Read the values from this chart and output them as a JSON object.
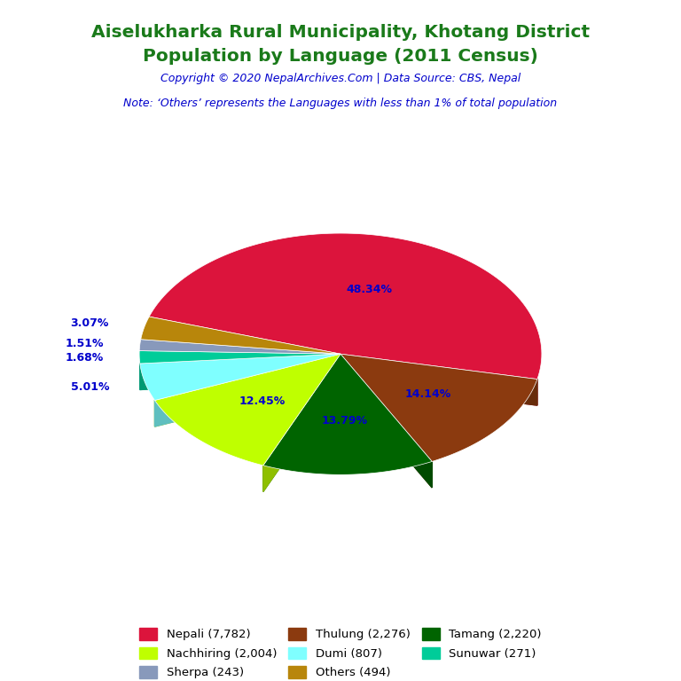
{
  "title_line1": "Aiselukharka Rural Municipality, Khotang District",
  "title_line2": "Population by Language (2011 Census)",
  "title_color": "#1a7a1a",
  "copyright": "Copyright © 2020 NepalArchives.Com | Data Source: CBS, Nepal",
  "copyright_color": "#0000cc",
  "note": "Note: ‘Others’ represents the Languages with less than 1% of total population",
  "note_color": "#0000cc",
  "labels": [
    "Nepali (7,782)",
    "Thulung (2,276)",
    "Tamang (2,220)",
    "Nachhiring (2,004)",
    "Dumi (807)",
    "Sunuwar (271)",
    "Sherpa (243)",
    "Others (494)"
  ],
  "values": [
    7782,
    2276,
    2220,
    2004,
    807,
    271,
    243,
    494
  ],
  "percentages": [
    "48.34%",
    "14.14%",
    "13.79%",
    "12.45%",
    "5.01%",
    "1.68%",
    "1.51%",
    "3.07%"
  ],
  "colors": [
    "#dc143c",
    "#8b3a0f",
    "#006400",
    "#bfff00",
    "#7fffff",
    "#00cc99",
    "#8899bb",
    "#b8860b"
  ],
  "pct_label_color": "#0000cc",
  "background_color": "#ffffff",
  "legend_order": [
    0,
    3,
    6,
    1,
    4,
    7,
    2,
    5
  ]
}
